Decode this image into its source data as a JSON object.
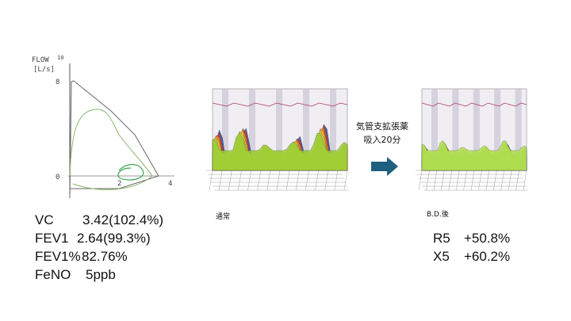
{
  "flow_volume": {
    "y_label": "FLOW",
    "y_unit": "[L/s]",
    "y_ticks": [
      "10",
      "8",
      "0"
    ],
    "x_ticks": [
      "2",
      "4"
    ]
  },
  "plots": [
    {
      "caption": "通常"
    },
    {
      "caption": "B.D.後"
    }
  ],
  "arrow_label": [
    "気管支拡張薬",
    "吸入20分"
  ],
  "left_results": [
    [
      "VC",
      "3.42(102.4%)"
    ],
    [
      "FEV1",
      "2.64(99.3%)"
    ],
    [
      "FEV1%",
      "82.76%"
    ],
    [
      "FeNO",
      "5ppb"
    ]
  ],
  "right_results": [
    [
      "R5",
      "+50.8%"
    ],
    [
      "X5",
      "+60.2%"
    ]
  ]
}
